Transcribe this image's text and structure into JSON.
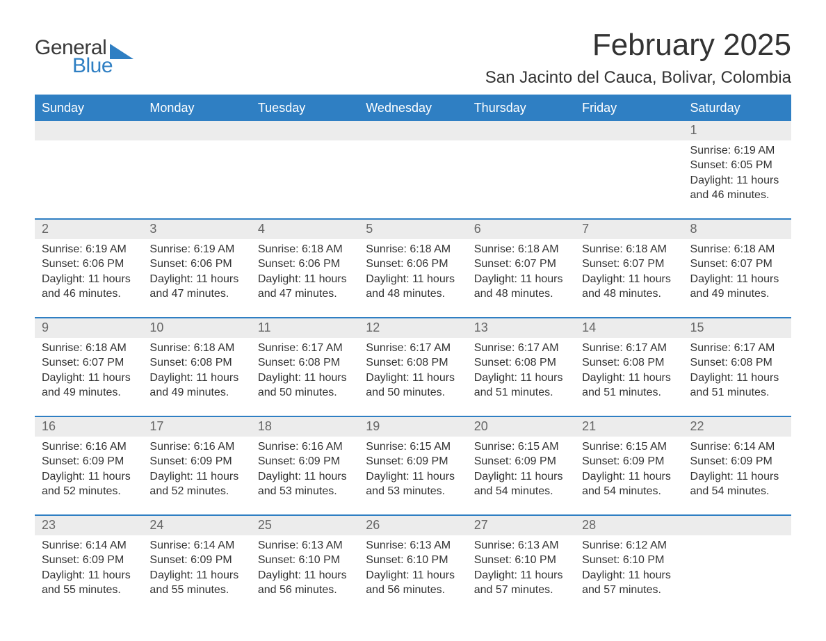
{
  "logo": {
    "word1": "General",
    "word2": "Blue",
    "triangle_color": "#2f7fc3",
    "word1_color": "#3a3a3a",
    "word2_color": "#2f7fc3"
  },
  "header": {
    "month_title": "February 2025",
    "location": "San Jacinto del Cauca, Bolivar, Colombia"
  },
  "colors": {
    "header_bar_bg": "#2f7fc3",
    "header_bar_text": "#ffffff",
    "week_border": "#2f7fc3",
    "daynum_bg": "#ececec",
    "daynum_text": "#666666",
    "body_text": "#333333",
    "page_bg": "#ffffff"
  },
  "fonts": {
    "month_title_size_pt": 33,
    "location_size_pt": 18,
    "dayheader_size_pt": 14,
    "daynum_size_pt": 14,
    "body_size_pt": 12
  },
  "day_headers": [
    "Sunday",
    "Monday",
    "Tuesday",
    "Wednesday",
    "Thursday",
    "Friday",
    "Saturday"
  ],
  "weeks": [
    [
      null,
      null,
      null,
      null,
      null,
      null,
      {
        "n": "1",
        "sunrise": "Sunrise: 6:19 AM",
        "sunset": "Sunset: 6:05 PM",
        "dl1": "Daylight: 11 hours",
        "dl2": "and 46 minutes."
      }
    ],
    [
      {
        "n": "2",
        "sunrise": "Sunrise: 6:19 AM",
        "sunset": "Sunset: 6:06 PM",
        "dl1": "Daylight: 11 hours",
        "dl2": "and 46 minutes."
      },
      {
        "n": "3",
        "sunrise": "Sunrise: 6:19 AM",
        "sunset": "Sunset: 6:06 PM",
        "dl1": "Daylight: 11 hours",
        "dl2": "and 47 minutes."
      },
      {
        "n": "4",
        "sunrise": "Sunrise: 6:18 AM",
        "sunset": "Sunset: 6:06 PM",
        "dl1": "Daylight: 11 hours",
        "dl2": "and 47 minutes."
      },
      {
        "n": "5",
        "sunrise": "Sunrise: 6:18 AM",
        "sunset": "Sunset: 6:06 PM",
        "dl1": "Daylight: 11 hours",
        "dl2": "and 48 minutes."
      },
      {
        "n": "6",
        "sunrise": "Sunrise: 6:18 AM",
        "sunset": "Sunset: 6:07 PM",
        "dl1": "Daylight: 11 hours",
        "dl2": "and 48 minutes."
      },
      {
        "n": "7",
        "sunrise": "Sunrise: 6:18 AM",
        "sunset": "Sunset: 6:07 PM",
        "dl1": "Daylight: 11 hours",
        "dl2": "and 48 minutes."
      },
      {
        "n": "8",
        "sunrise": "Sunrise: 6:18 AM",
        "sunset": "Sunset: 6:07 PM",
        "dl1": "Daylight: 11 hours",
        "dl2": "and 49 minutes."
      }
    ],
    [
      {
        "n": "9",
        "sunrise": "Sunrise: 6:18 AM",
        "sunset": "Sunset: 6:07 PM",
        "dl1": "Daylight: 11 hours",
        "dl2": "and 49 minutes."
      },
      {
        "n": "10",
        "sunrise": "Sunrise: 6:18 AM",
        "sunset": "Sunset: 6:08 PM",
        "dl1": "Daylight: 11 hours",
        "dl2": "and 49 minutes."
      },
      {
        "n": "11",
        "sunrise": "Sunrise: 6:17 AM",
        "sunset": "Sunset: 6:08 PM",
        "dl1": "Daylight: 11 hours",
        "dl2": "and 50 minutes."
      },
      {
        "n": "12",
        "sunrise": "Sunrise: 6:17 AM",
        "sunset": "Sunset: 6:08 PM",
        "dl1": "Daylight: 11 hours",
        "dl2": "and 50 minutes."
      },
      {
        "n": "13",
        "sunrise": "Sunrise: 6:17 AM",
        "sunset": "Sunset: 6:08 PM",
        "dl1": "Daylight: 11 hours",
        "dl2": "and 51 minutes."
      },
      {
        "n": "14",
        "sunrise": "Sunrise: 6:17 AM",
        "sunset": "Sunset: 6:08 PM",
        "dl1": "Daylight: 11 hours",
        "dl2": "and 51 minutes."
      },
      {
        "n": "15",
        "sunrise": "Sunrise: 6:17 AM",
        "sunset": "Sunset: 6:08 PM",
        "dl1": "Daylight: 11 hours",
        "dl2": "and 51 minutes."
      }
    ],
    [
      {
        "n": "16",
        "sunrise": "Sunrise: 6:16 AM",
        "sunset": "Sunset: 6:09 PM",
        "dl1": "Daylight: 11 hours",
        "dl2": "and 52 minutes."
      },
      {
        "n": "17",
        "sunrise": "Sunrise: 6:16 AM",
        "sunset": "Sunset: 6:09 PM",
        "dl1": "Daylight: 11 hours",
        "dl2": "and 52 minutes."
      },
      {
        "n": "18",
        "sunrise": "Sunrise: 6:16 AM",
        "sunset": "Sunset: 6:09 PM",
        "dl1": "Daylight: 11 hours",
        "dl2": "and 53 minutes."
      },
      {
        "n": "19",
        "sunrise": "Sunrise: 6:15 AM",
        "sunset": "Sunset: 6:09 PM",
        "dl1": "Daylight: 11 hours",
        "dl2": "and 53 minutes."
      },
      {
        "n": "20",
        "sunrise": "Sunrise: 6:15 AM",
        "sunset": "Sunset: 6:09 PM",
        "dl1": "Daylight: 11 hours",
        "dl2": "and 54 minutes."
      },
      {
        "n": "21",
        "sunrise": "Sunrise: 6:15 AM",
        "sunset": "Sunset: 6:09 PM",
        "dl1": "Daylight: 11 hours",
        "dl2": "and 54 minutes."
      },
      {
        "n": "22",
        "sunrise": "Sunrise: 6:14 AM",
        "sunset": "Sunset: 6:09 PM",
        "dl1": "Daylight: 11 hours",
        "dl2": "and 54 minutes."
      }
    ],
    [
      {
        "n": "23",
        "sunrise": "Sunrise: 6:14 AM",
        "sunset": "Sunset: 6:09 PM",
        "dl1": "Daylight: 11 hours",
        "dl2": "and 55 minutes."
      },
      {
        "n": "24",
        "sunrise": "Sunrise: 6:14 AM",
        "sunset": "Sunset: 6:09 PM",
        "dl1": "Daylight: 11 hours",
        "dl2": "and 55 minutes."
      },
      {
        "n": "25",
        "sunrise": "Sunrise: 6:13 AM",
        "sunset": "Sunset: 6:10 PM",
        "dl1": "Daylight: 11 hours",
        "dl2": "and 56 minutes."
      },
      {
        "n": "26",
        "sunrise": "Sunrise: 6:13 AM",
        "sunset": "Sunset: 6:10 PM",
        "dl1": "Daylight: 11 hours",
        "dl2": "and 56 minutes."
      },
      {
        "n": "27",
        "sunrise": "Sunrise: 6:13 AM",
        "sunset": "Sunset: 6:10 PM",
        "dl1": "Daylight: 11 hours",
        "dl2": "and 57 minutes."
      },
      {
        "n": "28",
        "sunrise": "Sunrise: 6:12 AM",
        "sunset": "Sunset: 6:10 PM",
        "dl1": "Daylight: 11 hours",
        "dl2": "and 57 minutes."
      },
      null
    ]
  ]
}
